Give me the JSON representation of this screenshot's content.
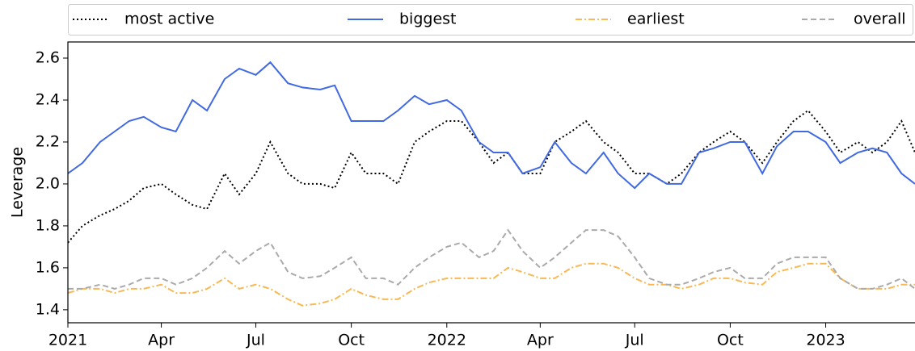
{
  "chart_data": {
    "type": "line",
    "y_label": "Leverage",
    "x": [
      "2021-01-01",
      "2021-01-15",
      "2021-02-01",
      "2021-02-15",
      "2021-03-01",
      "2021-03-15",
      "2021-04-01",
      "2021-04-15",
      "2021-05-01",
      "2021-05-15",
      "2021-06-01",
      "2021-06-15",
      "2021-07-01",
      "2021-07-15",
      "2021-08-01",
      "2021-08-15",
      "2021-09-01",
      "2021-09-15",
      "2021-10-01",
      "2021-10-15",
      "2021-11-01",
      "2021-11-15",
      "2021-12-01",
      "2021-12-15",
      "2022-01-01",
      "2022-01-15",
      "2022-02-01",
      "2022-02-15",
      "2022-03-01",
      "2022-03-15",
      "2022-04-01",
      "2022-04-15",
      "2022-05-01",
      "2022-05-15",
      "2022-06-01",
      "2022-06-15",
      "2022-07-01",
      "2022-07-15",
      "2022-08-01",
      "2022-08-15",
      "2022-09-01",
      "2022-09-15",
      "2022-10-01",
      "2022-10-15",
      "2022-11-01",
      "2022-11-15",
      "2022-12-01",
      "2022-12-15",
      "2023-01-01",
      "2023-01-15",
      "2023-02-01",
      "2023-02-15",
      "2023-03-01",
      "2023-03-15",
      "2023-03-28"
    ],
    "series": [
      {
        "name": "most active",
        "color": "#000000",
        "linestyle": "dotted",
        "values": [
          1.72,
          1.8,
          1.85,
          1.88,
          1.92,
          1.98,
          2.0,
          1.95,
          1.9,
          1.88,
          2.05,
          1.95,
          2.05,
          2.2,
          2.05,
          2.0,
          2.0,
          1.98,
          2.15,
          2.05,
          2.05,
          2.0,
          2.2,
          2.25,
          2.3,
          2.3,
          2.2,
          2.1,
          2.15,
          2.05,
          2.05,
          2.2,
          2.25,
          2.3,
          2.2,
          2.15,
          2.05,
          2.05,
          2.0,
          2.05,
          2.15,
          2.2,
          2.25,
          2.2,
          2.1,
          2.2,
          2.3,
          2.35,
          2.25,
          2.15,
          2.2,
          2.15,
          2.2,
          2.3,
          2.15
        ]
      },
      {
        "name": "biggest",
        "color": "#4169e1",
        "linestyle": "solid",
        "values": [
          2.05,
          2.1,
          2.2,
          2.25,
          2.3,
          2.32,
          2.27,
          2.25,
          2.4,
          2.35,
          2.5,
          2.55,
          2.52,
          2.58,
          2.48,
          2.46,
          2.45,
          2.47,
          2.3,
          2.3,
          2.3,
          2.35,
          2.42,
          2.38,
          2.4,
          2.35,
          2.2,
          2.15,
          2.15,
          2.05,
          2.08,
          2.2,
          2.1,
          2.05,
          2.15,
          2.05,
          1.98,
          2.05,
          2.0,
          2.0,
          2.15,
          2.17,
          2.2,
          2.2,
          2.05,
          2.18,
          2.25,
          2.25,
          2.2,
          2.1,
          2.15,
          2.17,
          2.15,
          2.05,
          2.0
        ]
      },
      {
        "name": "earliest",
        "color": "#f7b955",
        "linestyle": "dashdot",
        "values": [
          1.48,
          1.5,
          1.5,
          1.48,
          1.5,
          1.5,
          1.52,
          1.48,
          1.48,
          1.5,
          1.55,
          1.5,
          1.52,
          1.5,
          1.45,
          1.42,
          1.43,
          1.45,
          1.5,
          1.47,
          1.45,
          1.45,
          1.5,
          1.53,
          1.55,
          1.55,
          1.55,
          1.55,
          1.6,
          1.58,
          1.55,
          1.55,
          1.6,
          1.62,
          1.62,
          1.6,
          1.55,
          1.52,
          1.52,
          1.5,
          1.52,
          1.55,
          1.55,
          1.53,
          1.52,
          1.58,
          1.6,
          1.62,
          1.62,
          1.55,
          1.5,
          1.5,
          1.5,
          1.52,
          1.52
        ]
      },
      {
        "name": "overall",
        "color": "#aaaaaa",
        "linestyle": "dashed",
        "values": [
          1.5,
          1.5,
          1.52,
          1.5,
          1.52,
          1.55,
          1.55,
          1.52,
          1.55,
          1.6,
          1.68,
          1.62,
          1.68,
          1.72,
          1.58,
          1.55,
          1.56,
          1.6,
          1.65,
          1.55,
          1.55,
          1.52,
          1.6,
          1.65,
          1.7,
          1.72,
          1.65,
          1.68,
          1.78,
          1.68,
          1.6,
          1.65,
          1.72,
          1.78,
          1.78,
          1.75,
          1.65,
          1.55,
          1.52,
          1.52,
          1.55,
          1.58,
          1.6,
          1.55,
          1.55,
          1.62,
          1.65,
          1.65,
          1.65,
          1.55,
          1.5,
          1.5,
          1.52,
          1.55,
          1.5
        ]
      }
    ],
    "xlim": [
      "2021-01-01",
      "2023-03-28"
    ],
    "xticks": [
      {
        "value": "2021-01-01",
        "label": "2021"
      },
      {
        "value": "2021-04-01",
        "label": "Apr"
      },
      {
        "value": "2021-07-01",
        "label": "Jul"
      },
      {
        "value": "2021-10-01",
        "label": "Oct"
      },
      {
        "value": "2022-01-01",
        "label": "2022"
      },
      {
        "value": "2022-04-01",
        "label": "Apr"
      },
      {
        "value": "2022-07-01",
        "label": "Jul"
      },
      {
        "value": "2022-10-01",
        "label": "Oct"
      },
      {
        "value": "2023-01-01",
        "label": "2023"
      }
    ],
    "ylim": [
      1.338,
      2.677
    ],
    "yticks": [
      1.4,
      1.6,
      1.8,
      {
        "value": 2,
        "label": "2.0"
      },
      2.2,
      2.4,
      2.6
    ],
    "legend": "top"
  }
}
